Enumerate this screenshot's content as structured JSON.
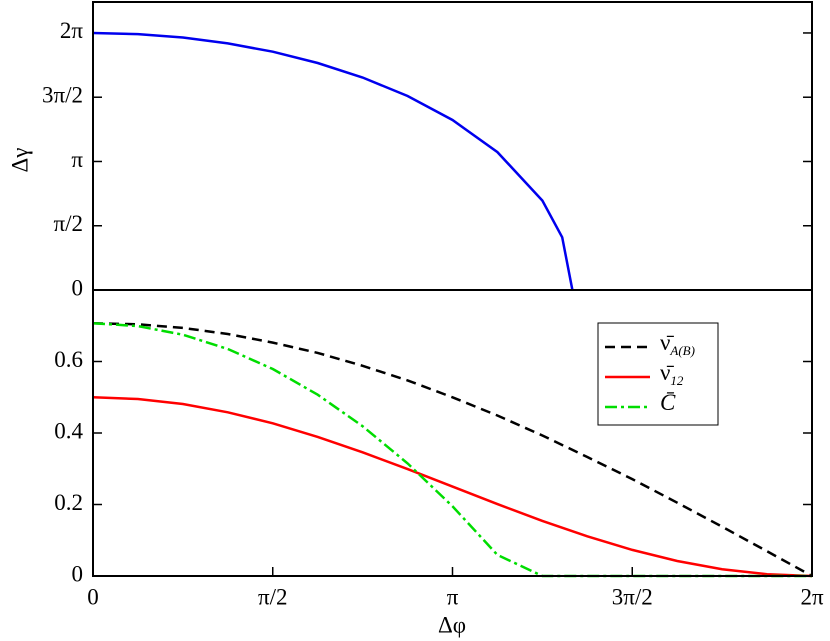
{
  "chart_data": [
    {
      "type": "line",
      "ylabel": "Δγ",
      "x": [
        0,
        0.3927,
        0.7854,
        1.1781,
        1.5708,
        1.9635,
        2.3562,
        2.7489,
        3.1416,
        3.5343,
        3.927,
        4.1,
        4.189
      ],
      "series": [
        {
          "color": "#0000ee",
          "dash": "solid",
          "values": [
            6.283,
            6.255,
            6.171,
            6.029,
            5.826,
            5.55,
            5.195,
            4.743,
            4.156,
            3.372,
            2.186,
            1.287,
            0
          ]
        }
      ],
      "xlim": [
        0,
        6.2832
      ],
      "ylim": [
        0,
        7.04
      ],
      "yticks": [
        0,
        {
          "value": 1.5708,
          "label": "π/2"
        },
        {
          "value": 3.1416,
          "label": "π"
        },
        {
          "value": 4.7124,
          "label": "3π/2"
        },
        {
          "value": 6.2832,
          "label": "2π"
        }
      ]
    },
    {
      "type": "line",
      "xlabel": "Δφ",
      "x": [
        0,
        0.3927,
        0.7854,
        1.1781,
        1.5708,
        1.9635,
        2.3562,
        2.7489,
        3.1416,
        3.5343,
        3.927,
        4.3197,
        4.7124,
        5.1051,
        5.4978,
        5.8905,
        6.2832
      ],
      "series": [
        {
          "name": "ν̄",
          "subscript": "A(B)",
          "color": "#000000",
          "dash": "dashed",
          "values": [
            0.707,
            0.704,
            0.694,
            0.677,
            0.653,
            0.624,
            0.588,
            0.547,
            0.5,
            0.449,
            0.393,
            0.333,
            0.271,
            0.205,
            0.138,
            0.069,
            0
          ]
        },
        {
          "name": "ν̄",
          "subscript": "12",
          "color": "#ff0000",
          "dash": "solid",
          "values": [
            0.5,
            0.495,
            0.481,
            0.458,
            0.427,
            0.389,
            0.346,
            0.299,
            0.25,
            0.201,
            0.154,
            0.111,
            0.073,
            0.042,
            0.019,
            0.005,
            0
          ]
        },
        {
          "name": "C̄",
          "color": "#00dd00",
          "dash": "dashdot",
          "values": [
            0.707,
            0.699,
            0.675,
            0.635,
            0.579,
            0.507,
            0.419,
            0.315,
            0.195,
            0.059,
            0,
            0,
            0,
            0,
            0,
            0,
            0
          ]
        }
      ],
      "xlim": [
        0,
        6.2832
      ],
      "ylim": [
        0,
        0.8
      ],
      "xticks": [
        0,
        {
          "value": 1.5708,
          "label": "π/2"
        },
        {
          "value": 3.1416,
          "label": "π"
        },
        {
          "value": 4.7124,
          "label": "3π/2"
        },
        {
          "value": 6.2832,
          "label": "2π"
        }
      ],
      "yticks": [
        0,
        0.2,
        0.4,
        0.6
      ]
    }
  ]
}
